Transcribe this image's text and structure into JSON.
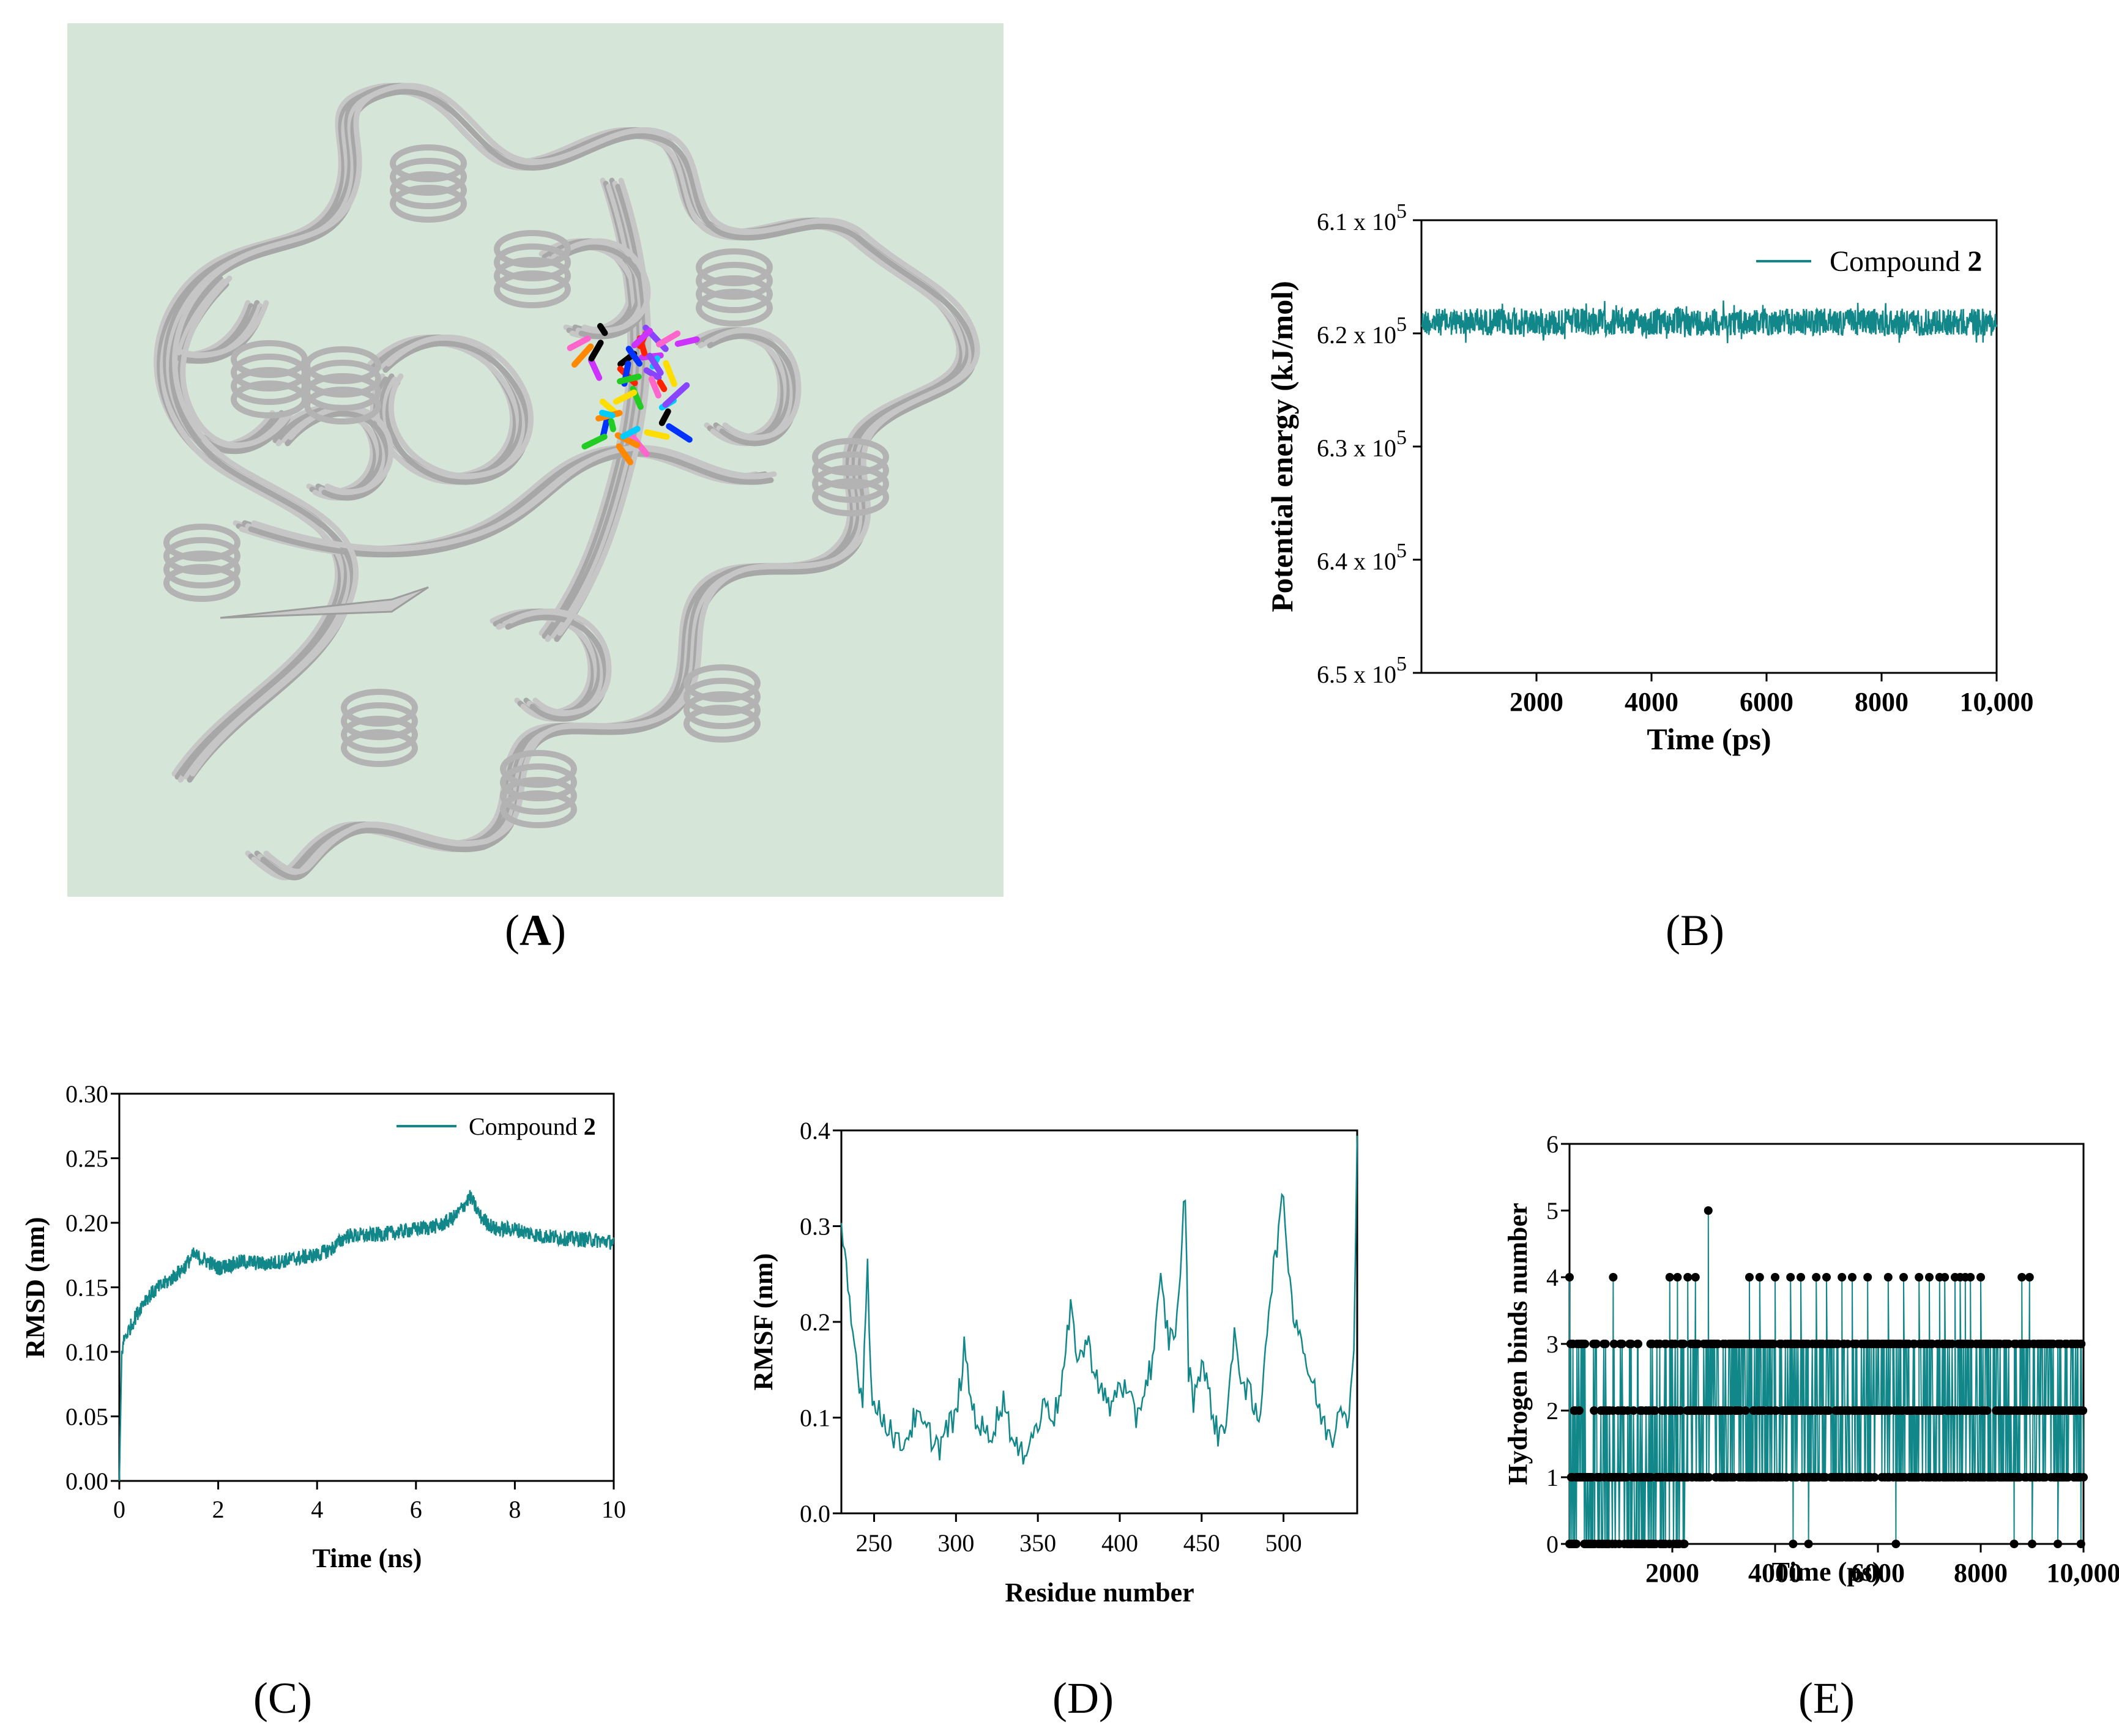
{
  "colors": {
    "series": "#12878a",
    "panel_a_bg": "#d5e6d9",
    "protein": "#b9b9b9"
  },
  "panel_labels": {
    "a_open": "(",
    "a": "A",
    "a_close": ")",
    "b": "(B)",
    "c": "(C)",
    "d": "(D)",
    "e": "(E)"
  },
  "panel_a": {
    "image_name": "protein-ligand-superposition-image"
  },
  "chart_data": [
    {
      "id": "B",
      "type": "line",
      "xlabel": "Time (ps)",
      "ylabel": "Potential energy (kJ/mol)",
      "xlim": [
        0,
        10000
      ],
      "ylim": [
        6.1,
        6.5
      ],
      "y_inverted": true,
      "xticks": [
        2000,
        4000,
        6000,
        8000,
        10000
      ],
      "xtick_labels": [
        "2000",
        "4000",
        "6000",
        "8000",
        "10,000"
      ],
      "yticks": [
        6.1,
        6.2,
        6.3,
        6.4,
        6.5
      ],
      "ytick_labels": [
        "6.1 x 10",
        "6.2 x 10",
        "6.3 x 10",
        "6.4 x 10",
        "6.5 x 10"
      ],
      "ytick_exponent": "5",
      "legend": {
        "prefix": "Compound ",
        "bold": "2",
        "position": "top-right"
      },
      "series": [
        {
          "name": "Compound 2",
          "mean": 6.19,
          "noise": 0.012,
          "x_start": 0,
          "x_end": 10000
        }
      ]
    },
    {
      "id": "C",
      "type": "line",
      "xlabel": "Time (ns)",
      "ylabel": "RMSD (nm)",
      "xlim": [
        0,
        10
      ],
      "ylim": [
        0,
        0.3
      ],
      "xticks": [
        0,
        2,
        4,
        6,
        8,
        10
      ],
      "xtick_labels": [
        "0",
        "2",
        "4",
        "6",
        "8",
        "10"
      ],
      "yticks": [
        0,
        0.05,
        0.1,
        0.15,
        0.2,
        0.25,
        0.3
      ],
      "ytick_labels": [
        "0.00",
        "0.05",
        "0.10",
        "0.15",
        "0.20",
        "0.25",
        "0.30"
      ],
      "legend": {
        "prefix": "Compound ",
        "bold": "2",
        "position": "top-right"
      },
      "series": [
        {
          "name": "Compound 2",
          "x": [
            0,
            0.05,
            0.1,
            0.3,
            0.5,
            0.8,
            1.0,
            1.3,
            1.5,
            1.8,
            2.0,
            2.5,
            3.0,
            3.5,
            4.0,
            4.3,
            4.6,
            5.0,
            5.5,
            6.0,
            6.5,
            6.8,
            7.0,
            7.1,
            7.3,
            7.6,
            8.0,
            8.5,
            9.0,
            9.5,
            10.0
          ],
          "y": [
            0.0,
            0.1,
            0.11,
            0.125,
            0.14,
            0.15,
            0.155,
            0.165,
            0.175,
            0.17,
            0.165,
            0.17,
            0.168,
            0.172,
            0.175,
            0.18,
            0.19,
            0.19,
            0.192,
            0.195,
            0.198,
            0.205,
            0.215,
            0.22,
            0.205,
            0.195,
            0.195,
            0.19,
            0.188,
            0.187,
            0.185
          ],
          "noise": 0.006
        }
      ]
    },
    {
      "id": "D",
      "type": "line",
      "xlabel": "Residue number",
      "ylabel": "RMSF (nm)",
      "xlim": [
        230,
        545
      ],
      "ylim": [
        0,
        0.4
      ],
      "xticks": [
        250,
        300,
        350,
        400,
        450,
        500
      ],
      "xtick_labels": [
        "250",
        "300",
        "350",
        "400",
        "450",
        "500"
      ],
      "yticks": [
        0,
        0.1,
        0.2,
        0.3,
        0.4
      ],
      "ytick_labels": [
        "0.0",
        "0.1",
        "0.2",
        "0.3",
        "0.4"
      ],
      "series": [
        {
          "name": "RMSF",
          "x": [
            230,
            233,
            236,
            240,
            243,
            246,
            248,
            250,
            255,
            260,
            265,
            270,
            275,
            280,
            285,
            290,
            295,
            300,
            305,
            310,
            315,
            320,
            325,
            330,
            335,
            340,
            345,
            350,
            355,
            360,
            365,
            370,
            375,
            380,
            385,
            390,
            395,
            400,
            405,
            410,
            415,
            420,
            425,
            430,
            435,
            440,
            442,
            445,
            450,
            455,
            460,
            465,
            470,
            475,
            480,
            485,
            490,
            495,
            500,
            505,
            510,
            515,
            520,
            525,
            530,
            535,
            540,
            543,
            545
          ],
          "y": [
            0.29,
            0.25,
            0.2,
            0.15,
            0.12,
            0.27,
            0.14,
            0.11,
            0.1,
            0.09,
            0.07,
            0.08,
            0.1,
            0.09,
            0.08,
            0.07,
            0.09,
            0.1,
            0.17,
            0.11,
            0.09,
            0.08,
            0.1,
            0.12,
            0.07,
            0.06,
            0.08,
            0.09,
            0.12,
            0.1,
            0.14,
            0.21,
            0.16,
            0.18,
            0.15,
            0.12,
            0.11,
            0.14,
            0.12,
            0.1,
            0.13,
            0.16,
            0.24,
            0.18,
            0.2,
            0.34,
            0.15,
            0.12,
            0.16,
            0.12,
            0.08,
            0.1,
            0.18,
            0.14,
            0.12,
            0.09,
            0.2,
            0.27,
            0.33,
            0.22,
            0.19,
            0.15,
            0.12,
            0.09,
            0.08,
            0.12,
            0.1,
            0.16,
            0.4
          ],
          "noise": 0.015
        }
      ]
    },
    {
      "id": "E",
      "type": "line",
      "xlabel": "Time (ps)",
      "ylabel": "Hydrogen binds number",
      "xlim": [
        0,
        10000
      ],
      "ylim": [
        0,
        6
      ],
      "xticks": [
        2000,
        4000,
        6000,
        8000,
        10000
      ],
      "xtick_labels": [
        "2000",
        "4000",
        "6000",
        "8000",
        "10,000"
      ],
      "yticks": [
        0,
        1,
        2,
        3,
        4,
        5,
        6
      ],
      "ytick_labels": [
        "0",
        "1",
        "2",
        "3",
        "4",
        "5",
        "6"
      ],
      "markers": "circle",
      "series": [
        {
          "name": "H-bonds",
          "dense_levels": [
            1,
            2,
            3
          ],
          "dense_range": [
            0,
            10000
          ],
          "zero_dense_range": [
            0,
            2250
          ],
          "peaks_4": [
            0,
            850,
            1950,
            2100,
            2300,
            2450,
            3500,
            3700,
            4000,
            4300,
            4500,
            4800,
            5000,
            5300,
            5500,
            5800,
            6200,
            6500,
            6800,
            7000,
            7200,
            7300,
            7500,
            7600,
            7700,
            7800,
            8000,
            8800,
            8950
          ],
          "peaks_5": [
            2700
          ],
          "zeros_sparse": [
            4350,
            4650,
            6350,
            8650,
            9000,
            9500,
            9950
          ]
        }
      ]
    }
  ]
}
